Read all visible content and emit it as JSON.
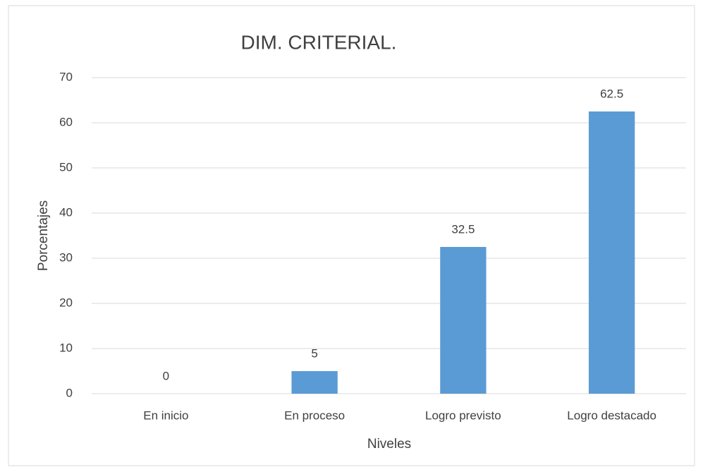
{
  "chart_data": {
    "type": "bar",
    "title": "DIM. CRITERIAL.",
    "x_label": "Niveles",
    "y_label": "Porcentajes",
    "categories": [
      "En inicio",
      "En proceso",
      "Logro previsto",
      "Logro destacado"
    ],
    "values": [
      0,
      5,
      32.5,
      62.5
    ],
    "color": "#5b9bd5",
    "ylim": [
      0,
      70
    ],
    "yticks": [
      0,
      10,
      20,
      30,
      40,
      50,
      60,
      70
    ],
    "grid": true
  }
}
